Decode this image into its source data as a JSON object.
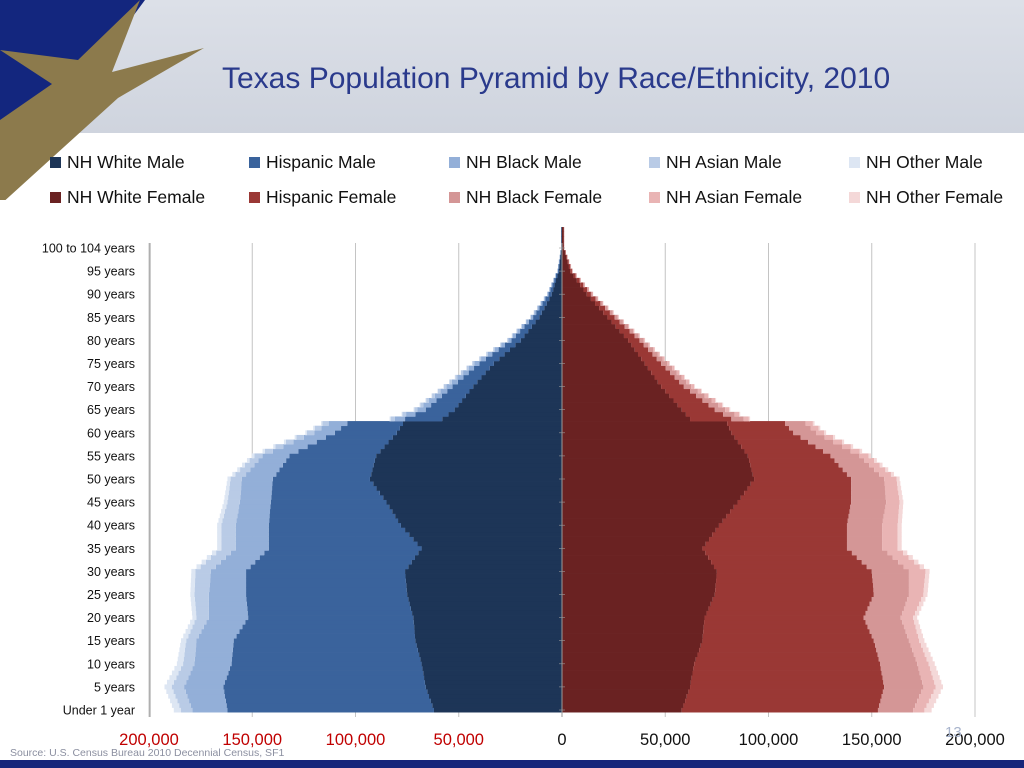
{
  "slide": {
    "title": "Texas Population Pyramid by Race/Ethnicity, 2010",
    "source": "Source: U.S. Census Bureau 2010 Decennial Census, SF1",
    "page_number": "13",
    "colors": {
      "header_band": "#d4d8e1",
      "title": "#2a3a8c",
      "star_field": "#13267e",
      "star": "#8c7a4c",
      "bottom_bar": "#16267a"
    }
  },
  "legend": [
    {
      "label": "NH White Male",
      "color": "#1d3557"
    },
    {
      "label": "Hispanic Male",
      "color": "#3a639c"
    },
    {
      "label": "NH Black Male",
      "color": "#93afd8"
    },
    {
      "label": "NH Asian Male",
      "color": "#b9cbe6"
    },
    {
      "label": "NH Other Male",
      "color": "#dde6f3"
    },
    {
      "label": "NH White Female",
      "color": "#6a2222"
    },
    {
      "label": "Hispanic Female",
      "color": "#9a3835"
    },
    {
      "label": "NH Black Female",
      "color": "#d49696"
    },
    {
      "label": "NH Asian Female",
      "color": "#e9b4b4"
    },
    {
      "label": "NH Other Female",
      "color": "#f4d8d8"
    }
  ],
  "chart_data": {
    "type": "bar",
    "orientation": "horizontal-pyramid",
    "title": "Texas Population Pyramid by Race/Ethnicity, 2010",
    "stacked": true,
    "x_range": [
      -200000,
      200000
    ],
    "x_ticks": [
      {
        "value": -200000,
        "label": "200,000"
      },
      {
        "value": -150000,
        "label": "150,000"
      },
      {
        "value": -100000,
        "label": "100,000"
      },
      {
        "value": -50000,
        "label": "50,000"
      },
      {
        "value": 0,
        "label": "0"
      },
      {
        "value": 50000,
        "label": "50,000"
      },
      {
        "value": 100000,
        "label": "100,000"
      },
      {
        "value": 150000,
        "label": "150,000"
      },
      {
        "value": 200000,
        "label": "200,000"
      }
    ],
    "x_tick_colors": {
      "negative": "#c00000",
      "positive": "#111111"
    },
    "y_ticks": [
      {
        "age": 0,
        "label": "Under 1 year"
      },
      {
        "age": 5,
        "label": "5 years"
      },
      {
        "age": 10,
        "label": "10 years"
      },
      {
        "age": 15,
        "label": "15 years"
      },
      {
        "age": 20,
        "label": "20 years"
      },
      {
        "age": 25,
        "label": "25 years"
      },
      {
        "age": 30,
        "label": "30 years"
      },
      {
        "age": 35,
        "label": "35 years"
      },
      {
        "age": 40,
        "label": "40 years"
      },
      {
        "age": 45,
        "label": "45 years"
      },
      {
        "age": 50,
        "label": "50 years"
      },
      {
        "age": 55,
        "label": "55 years"
      },
      {
        "age": 60,
        "label": "60 years"
      },
      {
        "age": 65,
        "label": "65 years"
      },
      {
        "age": 70,
        "label": "70 years"
      },
      {
        "age": 75,
        "label": "75 years"
      },
      {
        "age": 80,
        "label": "80 years"
      },
      {
        "age": 85,
        "label": "85 years"
      },
      {
        "age": 90,
        "label": "90 years"
      },
      {
        "age": 95,
        "label": "95 years"
      },
      {
        "age": 100,
        "label": "100 to 104 years"
      }
    ],
    "grid": true,
    "legend_position": "top",
    "male_colors": [
      "#1d3557",
      "#3a639c",
      "#93afd8",
      "#b9cbe6",
      "#dde6f3"
    ],
    "female_colors": [
      "#6a2222",
      "#9a3835",
      "#d49696",
      "#e9b4b4",
      "#f4d8d8"
    ],
    "ages": [
      0,
      5,
      10,
      15,
      20,
      25,
      30,
      35,
      40,
      45,
      50,
      55,
      60,
      62,
      63,
      65,
      70,
      75,
      80,
      85,
      90,
      95,
      100
    ],
    "series": [
      {
        "name": "NH White Male",
        "values": [
          62000,
          66000,
          68000,
          71000,
          72000,
          75000,
          76000,
          68000,
          78000,
          85000,
          93000,
          90000,
          80000,
          77000,
          58000,
          52000,
          43000,
          33000,
          20000,
          11000,
          5000,
          1500,
          300
        ]
      },
      {
        "name": "Hispanic Male",
        "values": [
          100000,
          98000,
          92000,
          88000,
          80000,
          78000,
          77000,
          74000,
          64000,
          56000,
          47000,
          42000,
          30000,
          27000,
          18000,
          14000,
          10000,
          7000,
          4500,
          3000,
          1500,
          500,
          100
        ]
      },
      {
        "name": "NH Black Male",
        "values": [
          17000,
          19000,
          18000,
          18000,
          19000,
          18000,
          17000,
          16000,
          16000,
          15000,
          15000,
          13000,
          10000,
          9000,
          5000,
          4000,
          3000,
          2500,
          1500,
          1000,
          500,
          200,
          50
        ]
      },
      {
        "name": "NH Asian Male",
        "values": [
          5500,
          6000,
          5500,
          5000,
          6000,
          7000,
          7500,
          7000,
          7000,
          6000,
          5500,
          4000,
          3500,
          3000,
          2000,
          1500,
          1200,
          900,
          500,
          300,
          200,
          80,
          20
        ]
      },
      {
        "name": "NH Other Male",
        "values": [
          3500,
          3500,
          3000,
          2500,
          2000,
          2000,
          2000,
          2000,
          2000,
          1800,
          1500,
          1200,
          800,
          700,
          500,
          400,
          300,
          200,
          100,
          80,
          40,
          20,
          10
        ]
      },
      {
        "name": "NH White Female",
        "values": [
          58000,
          62000,
          64000,
          68000,
          69000,
          74000,
          75000,
          68000,
          76000,
          85000,
          93000,
          90000,
          82000,
          80000,
          62000,
          58000,
          48000,
          40000,
          32000,
          22000,
          12000,
          4000,
          800
        ]
      },
      {
        "name": "Hispanic Female",
        "values": [
          95000,
          94000,
          90000,
          83000,
          77000,
          77000,
          75000,
          70000,
          62000,
          55000,
          47000,
          40000,
          30000,
          28000,
          20000,
          16000,
          11000,
          8000,
          5500,
          3500,
          2000,
          800,
          200
        ]
      },
      {
        "name": "NH Black Female",
        "values": [
          17000,
          19000,
          18000,
          17000,
          18000,
          17000,
          18000,
          17000,
          17000,
          17000,
          16000,
          14000,
          11000,
          10000,
          6000,
          5000,
          3500,
          3000,
          2000,
          1500,
          800,
          300,
          80
        ]
      },
      {
        "name": "NH Asian Female",
        "values": [
          5500,
          6000,
          5500,
          5000,
          6000,
          7000,
          8000,
          7500,
          7500,
          6500,
          6000,
          4500,
          4000,
          3500,
          2500,
          2000,
          1500,
          1000,
          600,
          400,
          250,
          100,
          30
        ]
      },
      {
        "name": "NH Other Female",
        "values": [
          3500,
          3500,
          3000,
          2500,
          2000,
          2000,
          2000,
          2000,
          2000,
          1800,
          1500,
          1200,
          900,
          800,
          600,
          500,
          350,
          250,
          150,
          100,
          60,
          30,
          10
        ]
      }
    ]
  }
}
